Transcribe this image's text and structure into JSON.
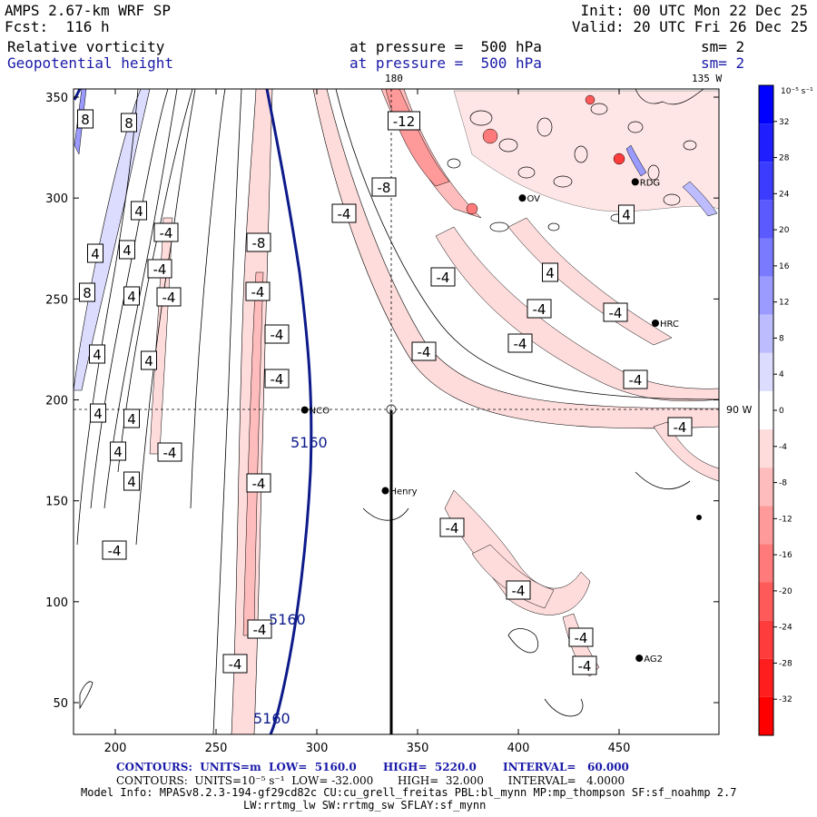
{
  "header": {
    "model": "AMPS 2.67-km WRF SP",
    "forecast": "Fcst:  116 h",
    "init": "Init: 00 UTC Mon 22 Dec 25",
    "valid": "Valid: 20 UTC Fri 26 Dec 25",
    "field1": "Relative vorticity",
    "field1_level": "at pressure =  500 hPa",
    "field1_smooth": "sm= 2",
    "field2": "Geopotential height",
    "field2_level": "at pressure =  500 hPa",
    "field2_smooth": "sm= 2"
  },
  "map": {
    "meridian_top_label": "180",
    "meridian_135_label": "135 W",
    "parallel_label": "90 W",
    "x_ticks": [
      "200",
      "250",
      "300",
      "350",
      "400",
      "450"
    ],
    "y_ticks": [
      "50",
      "100",
      "150",
      "200",
      "250",
      "300",
      "350"
    ],
    "stations": [
      {
        "name": "NCO",
        "x": 294,
        "y": 195
      },
      {
        "name": "Henry",
        "x": 334,
        "y": 155
      },
      {
        "name": "HRC",
        "x": 468,
        "y": 238
      },
      {
        "name": "AG2",
        "x": 460,
        "y": 72
      },
      {
        "name": "RDG",
        "x": 458,
        "y": 308
      },
      {
        "name": "OV",
        "x": 402,
        "y": 300
      }
    ],
    "height_contour_label": "5160",
    "vorticity_labels": [
      "8",
      "8",
      "4",
      "-4",
      "-8",
      "-4",
      "-4",
      "-4",
      "-12",
      "-8",
      "-4",
      "-4",
      "-4",
      "-4",
      "-4",
      "-4",
      "-4",
      "-4",
      "-4",
      "-4",
      "-4",
      "4",
      "4",
      "4",
      "4",
      "4",
      "4",
      "8",
      "4",
      "4",
      "4",
      "-4",
      "-4",
      "-4",
      "-4",
      "-4",
      "-4",
      "-4",
      "-4",
      "4",
      "4"
    ]
  },
  "colorbar": {
    "unit": "10⁻⁵ s⁻¹",
    "labels": [
      "32",
      "28",
      "24",
      "20",
      "16",
      "12",
      "8",
      "4",
      "0",
      "-4",
      "-8",
      "-12",
      "-16",
      "-20",
      "-24",
      "-28",
      "-32"
    ],
    "colors": [
      "#0000ff",
      "#1e1eff",
      "#3c3cff",
      "#5a5aff",
      "#7a7aff",
      "#9a9aff",
      "#bcbcff",
      "#dcdcff",
      "#ffffff",
      "#ffdcdc",
      "#ffbcbc",
      "#ff9a9a",
      "#ff7a7a",
      "#ff5a5a",
      "#ff3c3c",
      "#ff1e1e",
      "#ff0000"
    ]
  },
  "footer": {
    "line1": "CONTOURS:  UNITS=m  LOW=  5160.0       HIGH=  5220.0       INTERVAL=   60.000",
    "line2": "CONTOURS:  UNITS=10⁻⁵ s⁻¹  LOW= -32.000       HIGH=  32.000       INTERVAL=   4.0000",
    "line3": "Model Info: MPASv8.2.3-194-gf29cd82c CU:cu_grell_freitas PBL:bl_mynn MP:mp_thompson SF:sf_noahmp 2.7",
    "line4": "LW:rrtmg_lw SW:rrtmg_sw SFLAY:sf_mynn"
  },
  "colors": {
    "height_contour": "#0c1a8a",
    "vort_text": "#000000"
  }
}
